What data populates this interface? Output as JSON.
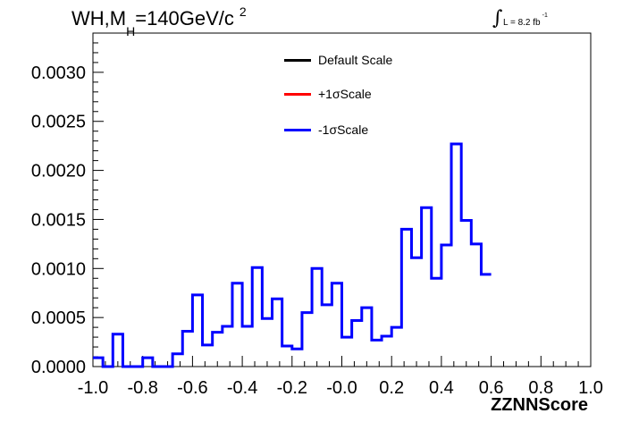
{
  "chart_data": {
    "type": "line",
    "title": {
      "main": "WH,M",
      "sub": "H",
      "tail": "=140GeV/c",
      "sup": "2"
    },
    "lumi": {
      "text": "L = 8.2 fb",
      "sup": "-1"
    },
    "xlabel": "ZZNNScore",
    "ylabel": "",
    "xlim": [
      -1.0,
      1.0
    ],
    "ylim": [
      0.0,
      0.0034
    ],
    "xticks": [
      "-1.0",
      "-0.8",
      "-0.6",
      "-0.4",
      "-0.2",
      "-0.0",
      "0.2",
      "0.4",
      "0.6",
      "0.8",
      "1.0"
    ],
    "yticks": [
      "0.0000",
      "0.0005",
      "0.0010",
      "0.0015",
      "0.0020",
      "0.0025",
      "0.0030"
    ],
    "bin_edges_start": -1.0,
    "bin_width": 0.04,
    "legend": [
      {
        "label": "Default Scale",
        "color": "#000000"
      },
      {
        "label": "+1σScale",
        "color": "#ff0000"
      },
      {
        "label": "-1σScale",
        "color": "#0000ff"
      }
    ],
    "series": [
      {
        "name": "-1σScale",
        "color": "#0000ff",
        "values": [
          9e-05,
          0.0,
          0.00033,
          0.0,
          0.0,
          9e-05,
          0.0,
          0.0,
          0.00013,
          0.00036,
          0.00073,
          0.00022,
          0.00035,
          0.00041,
          0.00085,
          0.00041,
          0.00101,
          0.00049,
          0.00069,
          0.00021,
          0.00018,
          0.00055,
          0.001,
          0.00063,
          0.00085,
          0.0003,
          0.00047,
          0.0006,
          0.00027,
          0.00031,
          0.0004,
          0.0014,
          0.00111,
          0.00162,
          0.0009,
          0.00124,
          0.00227,
          0.00149,
          0.00125,
          0.00094
        ]
      }
    ]
  }
}
